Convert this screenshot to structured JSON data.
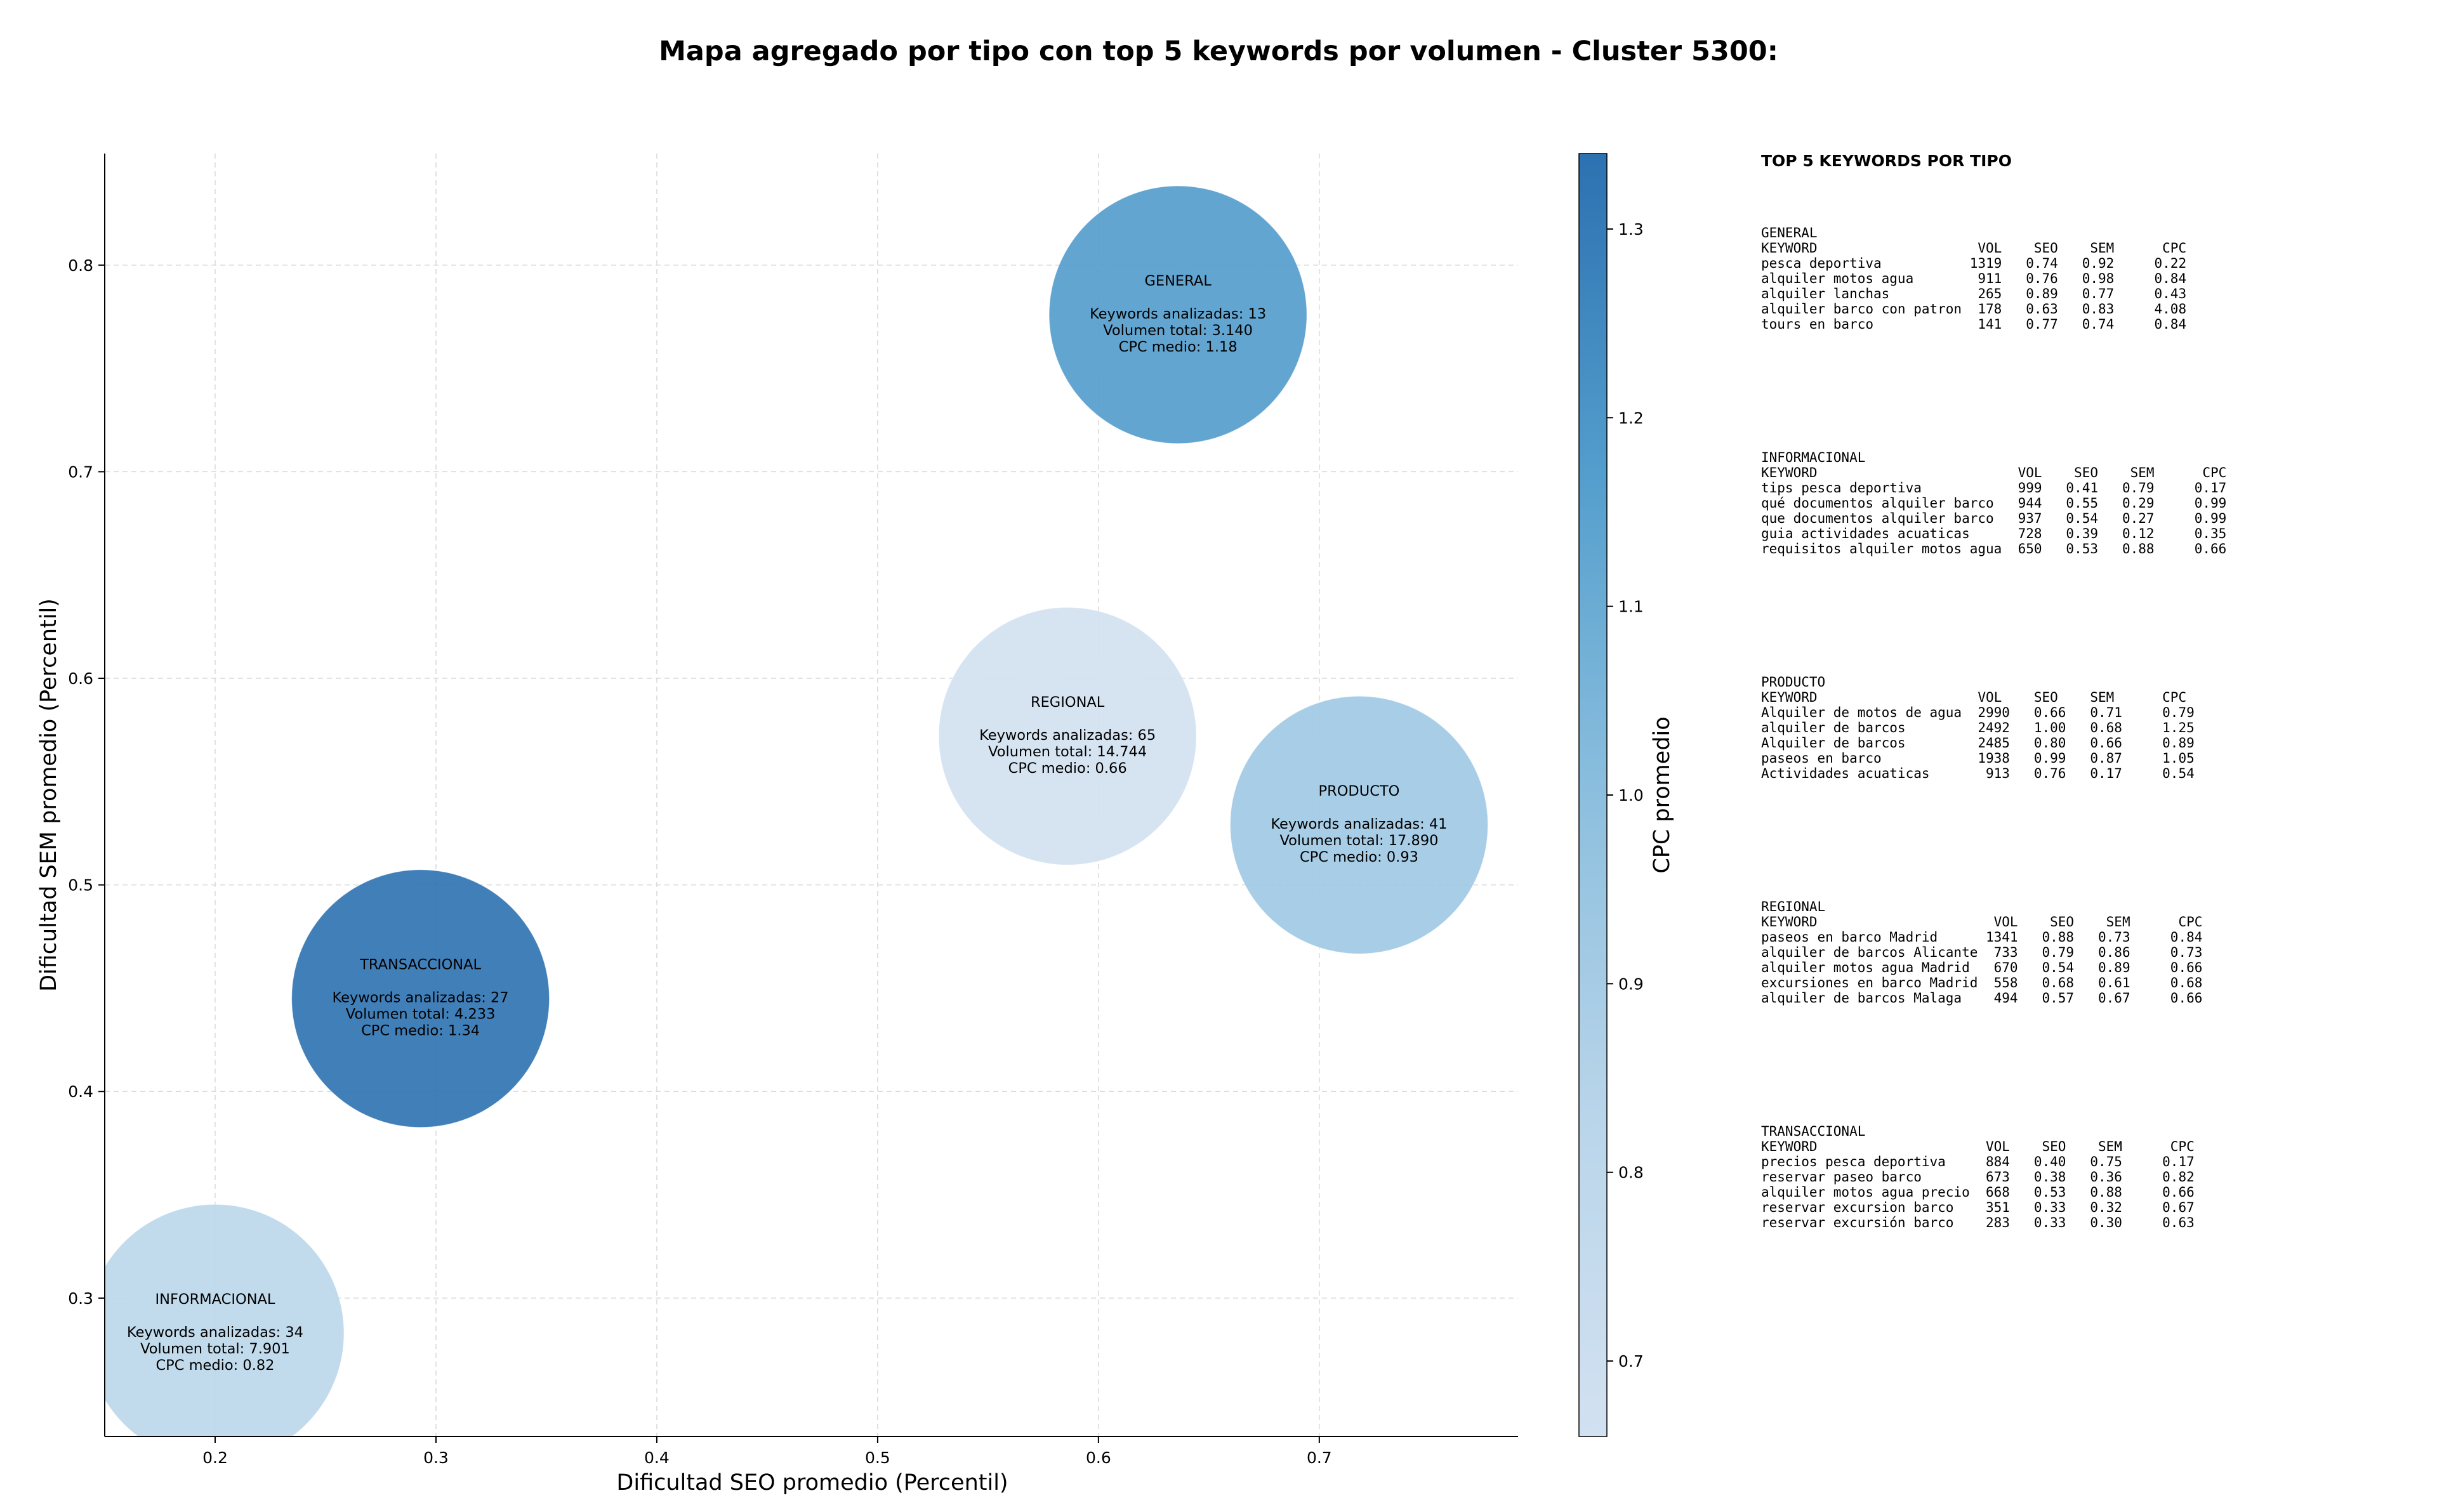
{
  "chart_data": {
    "type": "scatter",
    "title": "Mapa agregado por tipo con top 5 keywords por volumen - Cluster 5300:",
    "xlabel": "Dificultad SEO promedio (Percentil)",
    "ylabel": "Dificultad SEM promedio (Percentil)",
    "xlim": [
      0.15,
      0.79
    ],
    "ylim": [
      0.233,
      0.854
    ],
    "xticks": [
      "0.2",
      "0.3",
      "0.4",
      "0.5",
      "0.6",
      "0.7"
    ],
    "yticks": [
      "0.3",
      "0.4",
      "0.5",
      "0.6",
      "0.7",
      "0.8"
    ],
    "grid": true,
    "colorbar": {
      "label": "CPC promedio",
      "min": 0.66,
      "max": 1.34,
      "ticks": [
        "0.7",
        "0.8",
        "0.9",
        "1.0",
        "1.1",
        "1.2",
        "1.3"
      ]
    },
    "points": [
      {
        "name": "GENERAL",
        "x": 0.636,
        "y": 0.776,
        "cpc": 1.18,
        "lines": [
          "Keywords analizadas: 13",
          "Volumen total: 3.140",
          "CPC medio: 1.18"
        ]
      },
      {
        "name": "REGIONAL",
        "x": 0.586,
        "y": 0.572,
        "cpc": 0.66,
        "lines": [
          "Keywords analizadas: 65",
          "Volumen total: 14.744",
          "CPC medio: 0.66"
        ]
      },
      {
        "name": "PRODUCTO",
        "x": 0.718,
        "y": 0.529,
        "cpc": 0.93,
        "lines": [
          "Keywords analizadas: 41",
          "Volumen total: 17.890",
          "CPC medio: 0.93"
        ]
      },
      {
        "name": "TRANSACCIONAL",
        "x": 0.293,
        "y": 0.445,
        "cpc": 1.34,
        "lines": [
          "Keywords analizadas: 27",
          "Volumen total: 4.233",
          "CPC medio: 1.34"
        ]
      },
      {
        "name": "INFORMACIONAL",
        "x": 0.2,
        "y": 0.283,
        "cpc": 0.82,
        "lines": [
          "Keywords analizadas: 34",
          "Volumen total: 7.901",
          "CPC medio: 0.82"
        ]
      }
    ]
  },
  "side_panel": {
    "heading": "TOP 5 KEYWORDS POR TIPO",
    "blocks": [
      {
        "lines": [
          "GENERAL",
          "KEYWORD                    VOL    SEO    SEM      CPC",
          "pesca deportiva           1319   0.74   0.92     0.22",
          "alquiler motos agua        911   0.76   0.98     0.84",
          "alquiler lanchas           265   0.89   0.77     0.43",
          "alquiler barco con patron  178   0.63   0.83     4.08",
          "tours en barco             141   0.77   0.74     0.84"
        ]
      },
      {
        "lines": [
          "INFORMACIONAL",
          "KEYWORD                         VOL    SEO    SEM      CPC",
          "tips pesca deportiva            999   0.41   0.79     0.17",
          "qué documentos alquiler barco   944   0.55   0.29     0.99",
          "que documentos alquiler barco   937   0.54   0.27     0.99",
          "guia actividades acuaticas      728   0.39   0.12     0.35",
          "requisitos alquiler motos agua  650   0.53   0.88     0.66"
        ]
      },
      {
        "lines": [
          "PRODUCTO",
          "KEYWORD                    VOL    SEO    SEM      CPC",
          "Alquiler de motos de agua  2990   0.66   0.71     0.79",
          "alquiler de barcos         2492   1.00   0.68     1.25",
          "Alquiler de barcos         2485   0.80   0.66     0.89",
          "paseos en barco            1938   0.99   0.87     1.05",
          "Actividades acuaticas       913   0.76   0.17     0.54"
        ]
      },
      {
        "lines": [
          "REGIONAL",
          "KEYWORD                      VOL    SEO    SEM      CPC",
          "paseos en barco Madrid      1341   0.88   0.73     0.84",
          "alquiler de barcos Alicante  733   0.79   0.86     0.73",
          "alquiler motos agua Madrid   670   0.54   0.89     0.66",
          "excursiones en barco Madrid  558   0.68   0.61     0.68",
          "alquiler de barcos Malaga    494   0.57   0.67     0.66"
        ]
      },
      {
        "lines": [
          "TRANSACCIONAL",
          "KEYWORD                     VOL    SEO    SEM      CPC",
          "precios pesca deportiva     884   0.40   0.75     0.17",
          "reservar paseo barco        673   0.38   0.36     0.82",
          "alquiler motos agua precio  668   0.53   0.88     0.66",
          "reservar excursion barco    351   0.33   0.32     0.67",
          "reservar excursión barco    283   0.33   0.30     0.63"
        ]
      }
    ]
  }
}
